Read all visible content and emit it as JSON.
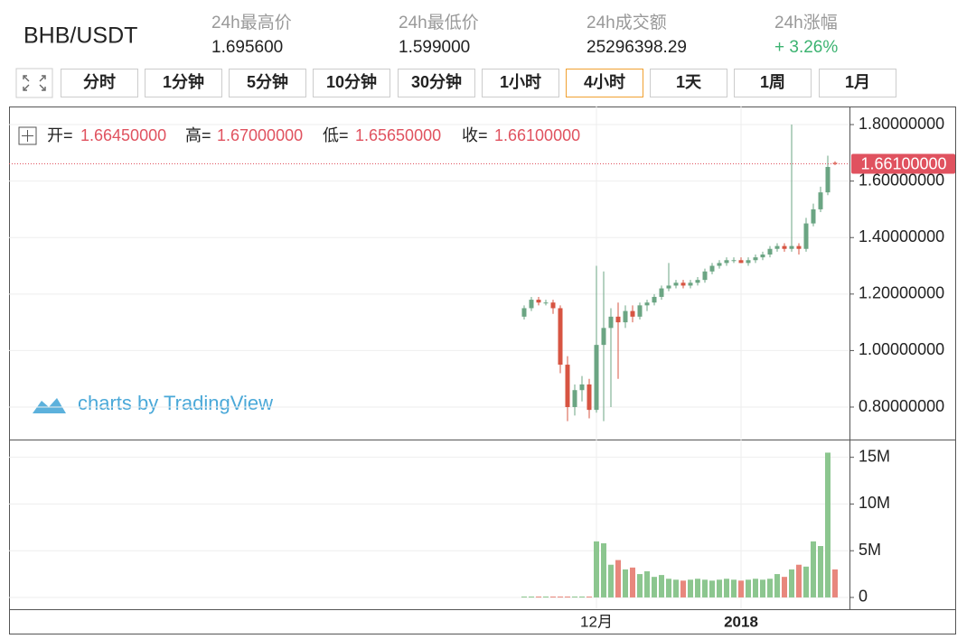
{
  "header": {
    "symbol": "BHB/USDT",
    "stats": [
      {
        "label": "24h最高价",
        "value": "1.695600"
      },
      {
        "label": "24h最低价",
        "value": "1.599000"
      },
      {
        "label": "24h成交额",
        "value": "25296398.29"
      },
      {
        "label": "24h涨幅",
        "value": "+ 3.26%"
      }
    ]
  },
  "toolbar": {
    "buttons": [
      "分时",
      "1分钟",
      "5分钟",
      "10分钟",
      "30分钟",
      "1小时",
      "4小时",
      "1天",
      "1周",
      "1月"
    ],
    "active": 6
  },
  "ohlc_legend": [
    {
      "label": "开=",
      "value": "1.66450000"
    },
    {
      "label": "高=",
      "value": "1.67000000"
    },
    {
      "label": "低=",
      "value": "1.65650000"
    },
    {
      "label": "收=",
      "value": "1.66100000"
    }
  ],
  "last_price_label": "1.66100000",
  "watermark": "charts by TradingView",
  "chart_data": [
    {
      "type": "candlestick",
      "up_color": "#6ba583",
      "down_color": "#d75442",
      "grid": true,
      "open": [
        1.12,
        1.15,
        1.18,
        1.17,
        1.17,
        1.15,
        0.95,
        0.8,
        0.86,
        0.88,
        0.79,
        1.02,
        1.08,
        1.12,
        1.1,
        1.14,
        1.12,
        1.16,
        1.17,
        1.19,
        1.22,
        1.23,
        1.24,
        1.23,
        1.24,
        1.25,
        1.28,
        1.3,
        1.31,
        1.32,
        1.32,
        1.31,
        1.32,
        1.33,
        1.34,
        1.36,
        1.37,
        1.36,
        1.37,
        1.36,
        1.45,
        1.5,
        1.56,
        1.6645
      ],
      "high": [
        1.16,
        1.19,
        1.19,
        1.18,
        1.18,
        1.16,
        0.98,
        0.88,
        0.91,
        0.9,
        1.3,
        1.28,
        1.15,
        1.17,
        1.16,
        1.16,
        1.17,
        1.18,
        1.2,
        1.23,
        1.31,
        1.25,
        1.25,
        1.25,
        1.26,
        1.29,
        1.31,
        1.32,
        1.33,
        1.33,
        1.33,
        1.33,
        1.34,
        1.35,
        1.37,
        1.38,
        1.38,
        1.8,
        1.38,
        1.47,
        1.52,
        1.58,
        1.69,
        1.67
      ],
      "low": [
        1.11,
        1.14,
        1.16,
        1.16,
        1.13,
        0.92,
        0.75,
        0.77,
        0.82,
        0.76,
        0.78,
        0.75,
        0.8,
        0.9,
        1.08,
        1.1,
        1.11,
        1.14,
        1.16,
        1.18,
        1.21,
        1.22,
        1.22,
        1.22,
        1.23,
        1.24,
        1.27,
        1.29,
        1.3,
        1.31,
        1.31,
        1.3,
        1.31,
        1.32,
        1.33,
        1.35,
        1.35,
        1.35,
        1.34,
        1.35,
        1.44,
        1.49,
        1.55,
        1.6565
      ],
      "close": [
        1.15,
        1.18,
        1.17,
        1.17,
        1.15,
        0.95,
        0.8,
        0.86,
        0.88,
        0.79,
        1.02,
        1.08,
        1.12,
        1.1,
        1.14,
        1.12,
        1.16,
        1.17,
        1.19,
        1.22,
        1.23,
        1.24,
        1.23,
        1.24,
        1.25,
        1.28,
        1.3,
        1.31,
        1.32,
        1.32,
        1.31,
        1.32,
        1.33,
        1.34,
        1.36,
        1.37,
        1.36,
        1.37,
        1.36,
        1.45,
        1.5,
        1.56,
        1.65,
        1.661
      ],
      "ylim": [
        0.685,
        1.864
      ],
      "yticks": [
        {
          "value": 0.8,
          "label": "0.80000000"
        },
        {
          "value": 1.0,
          "label": "1.00000000"
        },
        {
          "value": 1.2,
          "label": "1.20000000"
        },
        {
          "value": 1.4,
          "label": "1.40000000"
        },
        {
          "value": 1.6,
          "label": "1.60000000"
        },
        {
          "value": 1.8,
          "label": "1.80000000"
        }
      ]
    },
    {
      "type": "bar",
      "up_color": "#8cc68f",
      "down_color": "#e8877d",
      "grid": true,
      "categories": [
        null,
        null,
        null,
        null,
        null,
        null,
        null,
        null,
        null,
        null,
        "12月",
        null,
        null,
        null,
        null,
        null,
        null,
        null,
        null,
        null,
        null,
        null,
        null,
        null,
        null,
        null,
        null,
        null,
        null,
        null,
        "2018",
        null,
        null,
        null,
        null,
        null,
        null,
        null,
        null,
        null,
        null,
        null,
        null,
        null
      ],
      "values": [
        100000,
        100000,
        100000,
        100000,
        100000,
        100000,
        100000,
        100000,
        100000,
        100000,
        6000000,
        5800000,
        3500000,
        4000000,
        3000000,
        3200000,
        2500000,
        2800000,
        2200000,
        2400000,
        2000000,
        1900000,
        1800000,
        1900000,
        2000000,
        1900000,
        1800000,
        1900000,
        2000000,
        1900000,
        1800000,
        1900000,
        2000000,
        1900000,
        2000000,
        2500000,
        2200000,
        3000000,
        3500000,
        3300000,
        6000000,
        5500000,
        15500000,
        3000000
      ],
      "ylim": [
        -1260000,
        16900000
      ],
      "yticks": [
        0,
        {
          "value": 5000000,
          "label": "5M"
        },
        {
          "value": 10000000,
          "label": "10M"
        },
        {
          "value": 15000000,
          "label": "15M"
        }
      ]
    }
  ]
}
